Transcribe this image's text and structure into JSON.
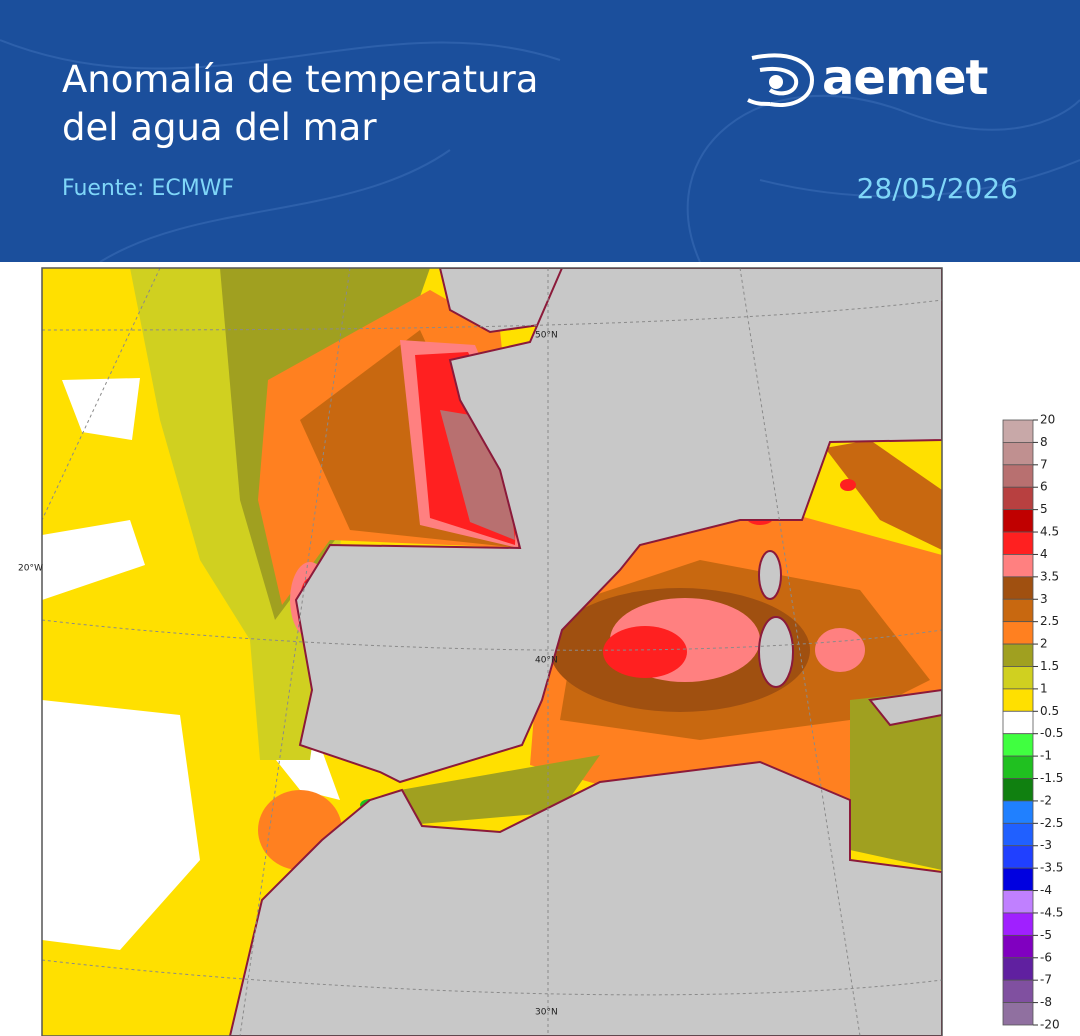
{
  "header": {
    "title": [
      "Anomalía de temperatura",
      "del agua del mar"
    ],
    "source": "Fuente: ECMWF",
    "date": "28/05/2026",
    "logo": "aemet"
  },
  "map": {
    "labels": [
      "20°W",
      "50°N",
      "40°N",
      "30°N"
    ]
  },
  "legend": {
    "labels": [
      "20",
      "8",
      "7",
      "6",
      "5",
      "4.5",
      "4",
      "3.5",
      "3",
      "2.5",
      "2",
      "1.5",
      "1",
      "0.5",
      "-0.5",
      "-1",
      "-1.5",
      "-2",
      "-2.5",
      "-3",
      "-3.5",
      "-4",
      "-4.5",
      "-5",
      "-6",
      "-7",
      "-8",
      "-20"
    ],
    "colors": [
      "#c8a8a8",
      "#c09090",
      "#b87070",
      "#b84040",
      "#c00000",
      "#ff2020",
      "#ff8080",
      "#a05010",
      "#c86810",
      "#ff8020",
      "#a0a020",
      "#d0d020",
      "#ffe000",
      "#ffffff",
      "#40ff40",
      "#20c020",
      "#108010",
      "#2080ff",
      "#2060ff",
      "#2040ff",
      "#0000e0",
      "#c080ff",
      "#a020ff",
      "#8000c0",
      "#6020a0",
      "#8050a0",
      "#9070a0"
    ]
  }
}
